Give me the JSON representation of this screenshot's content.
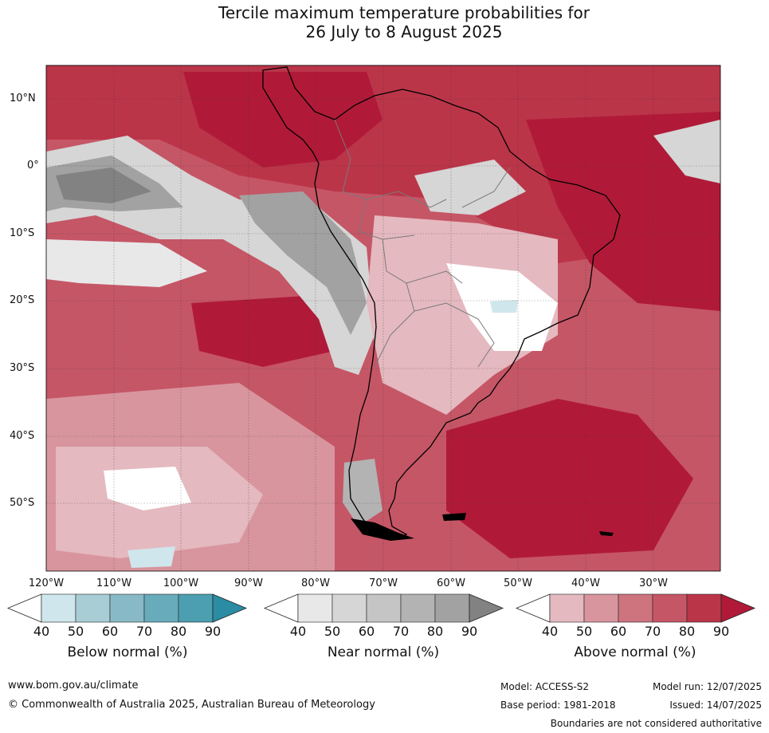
{
  "title_line1": "Tercile maximum temperature probabilities for",
  "title_line2": "26 July to 8 August 2025",
  "lat_labels": [
    "10°N",
    "0°",
    "10°S",
    "20°S",
    "30°S",
    "40°S",
    "50°S"
  ],
  "lon_labels": [
    "120°W",
    "110°W",
    "100°W",
    "90°W",
    "80°W",
    "70°W",
    "60°W",
    "50°W",
    "40°W",
    "30°W"
  ],
  "colorbars": [
    {
      "title": "Below normal (%)",
      "ticks": [
        "40",
        "50",
        "60",
        "70",
        "80",
        "90"
      ],
      "colors": [
        "#ffffff",
        "#cfe6ec",
        "#a9cdd5",
        "#88b9c6",
        "#68abbb",
        "#4b9fb1",
        "#2b8ca4"
      ]
    },
    {
      "title": "Near normal (%)",
      "ticks": [
        "40",
        "50",
        "60",
        "70",
        "80",
        "90"
      ],
      "colors": [
        "#ffffff",
        "#e8e8e8",
        "#d6d6d6",
        "#c5c5c5",
        "#b3b3b3",
        "#a2a2a2",
        "#828282"
      ]
    },
    {
      "title": "Above normal (%)",
      "ticks": [
        "40",
        "50",
        "60",
        "70",
        "80",
        "90"
      ],
      "colors": [
        "#ffffff",
        "#e4b9bf",
        "#d8959e",
        "#cd747f",
        "#c55666",
        "#bb3549",
        "#b01a38"
      ]
    }
  ],
  "footer": {
    "url": "www.bom.gov.au/climate",
    "copyright": "© Commonwealth of Australia 2025, Australian Bureau of Meteorology",
    "model": "Model: ACCESS-S2",
    "base_period": "Base period: 1981-2018",
    "model_run": "Model run: 12/07/2025",
    "issued": "Issued: 14/07/2025",
    "disclaimer": "Boundaries are not considered authoritative"
  }
}
